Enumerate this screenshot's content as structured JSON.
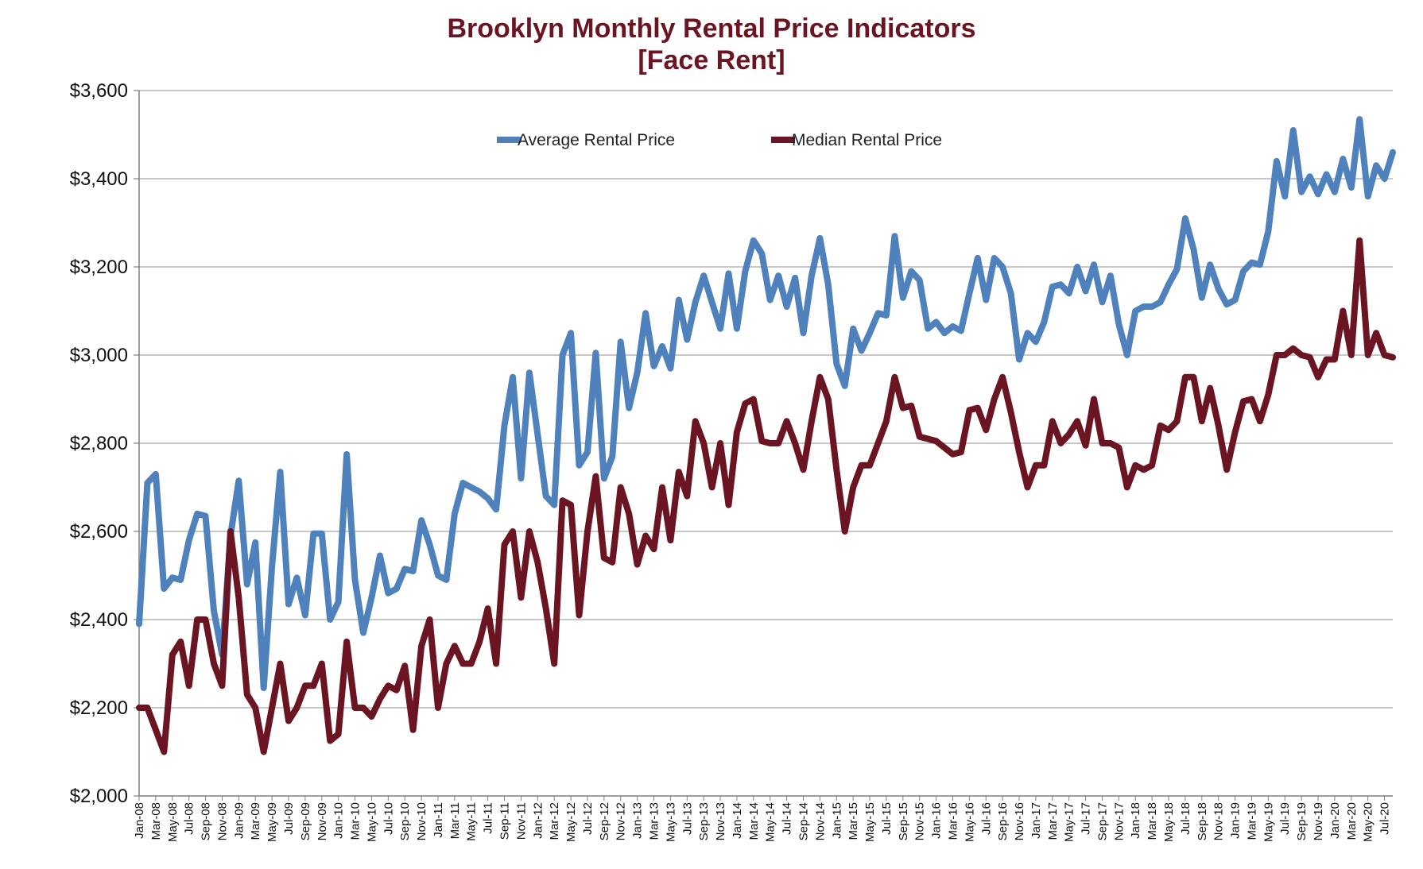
{
  "chart_data": {
    "type": "line",
    "title": "Brooklyn Monthly Rental Price Indicators",
    "subtitle": "[Face Rent]",
    "xlabel": "",
    "ylabel": "",
    "ylim": [
      2000,
      3600
    ],
    "yticks": [
      "$2,000",
      "$2,200",
      "$2,400",
      "$2,600",
      "$2,800",
      "$3,000",
      "$3,200",
      "$3,400",
      "$3,600"
    ],
    "ytick_values": [
      2000,
      2200,
      2400,
      2600,
      2800,
      3000,
      3200,
      3400,
      3600
    ],
    "grid": true,
    "legend": "top-center",
    "xtick_labels": [
      "Jan-08",
      "Mar-08",
      "May-08",
      "Jul-08",
      "Sep-08",
      "Nov-08",
      "Jan-09",
      "Mar-09",
      "May-09",
      "Jul-09",
      "Sep-09",
      "Nov-09",
      "Jan-10",
      "Mar-10",
      "May-10",
      "Jul-10",
      "Sep-10",
      "Nov-10",
      "Jan-11",
      "Mar-11",
      "May-11",
      "Jul-11",
      "Sep-11",
      "Nov-11",
      "Jan-12",
      "Mar-12",
      "May-12",
      "Jul-12",
      "Sep-12",
      "Nov-12",
      "Jan-13",
      "Mar-13",
      "May-13",
      "Jul-13",
      "Sep-13",
      "Nov-13",
      "Jan-14",
      "Mar-14",
      "May-14",
      "Jul-14",
      "Sep-14",
      "Nov-14",
      "Jan-15",
      "Mar-15",
      "May-15",
      "Jul-15",
      "Sep-15",
      "Nov-15",
      "Jan-16",
      "Mar-16",
      "May-16",
      "Jul-16",
      "Sep-16",
      "Nov-16",
      "Jan-17",
      "Mar-17",
      "May-17",
      "Jul-17",
      "Sep-17",
      "Nov-17",
      "Jan-18",
      "Mar-18",
      "May-18",
      "Jul-18",
      "Sep-18",
      "Nov-18",
      "Jan-19",
      "Mar-19",
      "May-19",
      "Jul-19",
      "Sep-19",
      "Nov-19",
      "Jan-20",
      "Mar-20",
      "May-20",
      "Jul-20"
    ],
    "x_start": "Jan-08",
    "series": [
      {
        "name": "Average Rental Price",
        "color": "#4f81bd",
        "values": [
          2390,
          2710,
          2730,
          2470,
          2495,
          2490,
          2580,
          2640,
          2635,
          2420,
          2320,
          2590,
          2715,
          2480,
          2575,
          2245,
          2520,
          2735,
          2435,
          2495,
          2410,
          2595,
          2595,
          2400,
          2440,
          2775,
          2490,
          2370,
          2450,
          2545,
          2460,
          2470,
          2515,
          2510,
          2625,
          2570,
          2500,
          2490,
          2640,
          2710,
          2700,
          2690,
          2675,
          2650,
          2840,
          2950,
          2720,
          2960,
          2820,
          2680,
          2660,
          3000,
          3050,
          2750,
          2780,
          3005,
          2720,
          2770,
          3030,
          2880,
          2960,
          3095,
          2975,
          3020,
          2970,
          3125,
          3035,
          3120,
          3180,
          3120,
          3060,
          3185,
          3060,
          3190,
          3260,
          3230,
          3125,
          3180,
          3110,
          3175,
          3050,
          3180,
          3265,
          3160,
          2980,
          2930,
          3060,
          3010,
          3050,
          3095,
          3090,
          3270,
          3130,
          3190,
          3170,
          3060,
          3075,
          3050,
          3065,
          3055,
          3140,
          3220,
          3125,
          3220,
          3200,
          3140,
          2990,
          3050,
          3030,
          3075,
          3155,
          3160,
          3140,
          3200,
          3145,
          3205,
          3120,
          3180,
          3070,
          3000,
          3100,
          3110,
          3110,
          3120,
          3160,
          3195,
          3310,
          3240,
          3130,
          3205,
          3150,
          3115,
          3125,
          3190,
          3210,
          3205,
          3280,
          3440,
          3360,
          3510,
          3370,
          3405,
          3365,
          3410,
          3370,
          3445,
          3380,
          3535,
          3360,
          3430,
          3400,
          3460
        ]
      },
      {
        "name": "Median Rental Price",
        "color": "#6b1422",
        "values": [
          2200,
          2200,
          2150,
          2100,
          2320,
          2350,
          2250,
          2400,
          2400,
          2300,
          2250,
          2600,
          2450,
          2230,
          2200,
          2100,
          2200,
          2300,
          2170,
          2200,
          2250,
          2250,
          2300,
          2125,
          2140,
          2350,
          2200,
          2200,
          2180,
          2220,
          2250,
          2240,
          2295,
          2150,
          2340,
          2400,
          2200,
          2300,
          2340,
          2300,
          2300,
          2350,
          2425,
          2300,
          2570,
          2600,
          2450,
          2600,
          2530,
          2425,
          2300,
          2670,
          2660,
          2410,
          2600,
          2725,
          2540,
          2530,
          2700,
          2640,
          2525,
          2590,
          2560,
          2700,
          2580,
          2735,
          2680,
          2850,
          2800,
          2700,
          2800,
          2660,
          2825,
          2890,
          2900,
          2805,
          2800,
          2800,
          2850,
          2800,
          2740,
          2850,
          2950,
          2900,
          2740,
          2600,
          2700,
          2750,
          2750,
          2800,
          2850,
          2950,
          2880,
          2885,
          2815,
          2810,
          2805,
          2790,
          2775,
          2780,
          2875,
          2880,
          2830,
          2900,
          2950,
          2870,
          2780,
          2700,
          2750,
          2750,
          2850,
          2800,
          2820,
          2850,
          2795,
          2900,
          2800,
          2800,
          2790,
          2700,
          2750,
          2740,
          2750,
          2840,
          2830,
          2850,
          2950,
          2950,
          2850,
          2925,
          2840,
          2740,
          2825,
          2895,
          2900,
          2850,
          2910,
          3000,
          3000,
          3015,
          3000,
          2995,
          2950,
          2990,
          2990,
          3100,
          3000,
          3260,
          3000,
          3050,
          3000,
          2995
        ]
      }
    ]
  }
}
